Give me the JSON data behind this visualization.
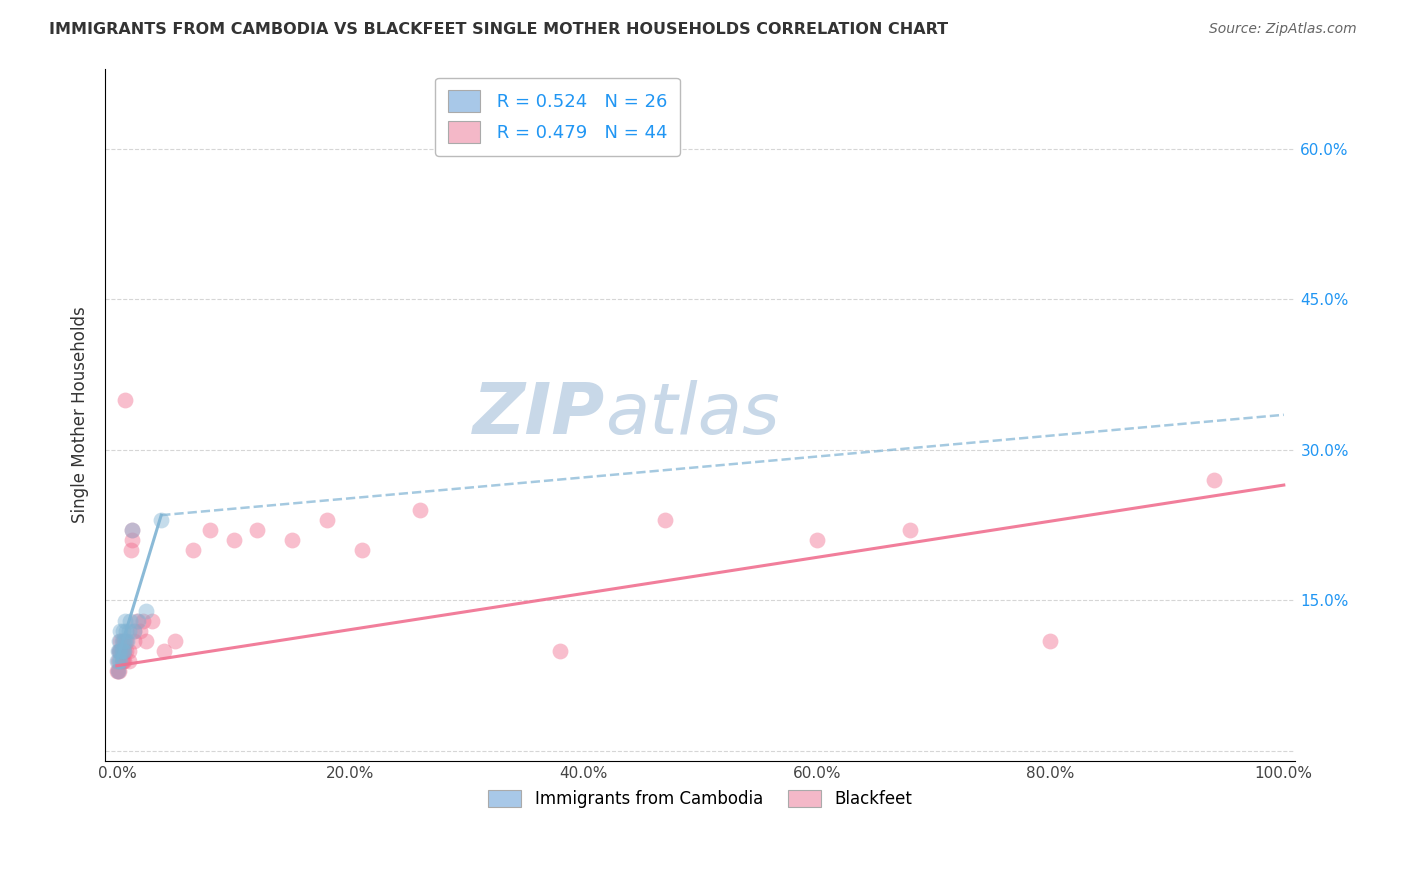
{
  "title": "IMMIGRANTS FROM CAMBODIA VS BLACKFEET SINGLE MOTHER HOUSEHOLDS CORRELATION CHART",
  "source": "Source: ZipAtlas.com",
  "ylabel": "Single Mother Households",
  "xlim": [
    -0.01,
    1.01
  ],
  "ylim": [
    -0.01,
    0.68
  ],
  "xticks": [
    0.0,
    0.2,
    0.4,
    0.6,
    0.8,
    1.0
  ],
  "xtick_labels": [
    "0.0%",
    "20.0%",
    "40.0%",
    "60.0%",
    "80.0%",
    "100.0%"
  ],
  "yticks": [
    0.0,
    0.15,
    0.3,
    0.45,
    0.6
  ],
  "ytick_labels_right": [
    "",
    "15.0%",
    "30.0%",
    "45.0%",
    "60.0%"
  ],
  "series_cambodia": {
    "label": "Immigrants from Cambodia",
    "color_patch": "#a8c8e8",
    "color_marker": "#7fb3d3",
    "R": 0.524,
    "N": 26,
    "x": [
      0.0005,
      0.001,
      0.001,
      0.0015,
      0.002,
      0.002,
      0.003,
      0.003,
      0.003,
      0.004,
      0.004,
      0.005,
      0.005,
      0.006,
      0.006,
      0.007,
      0.007,
      0.008,
      0.009,
      0.01,
      0.011,
      0.013,
      0.015,
      0.018,
      0.025,
      0.038
    ],
    "y": [
      0.09,
      0.08,
      0.1,
      0.09,
      0.1,
      0.11,
      0.09,
      0.1,
      0.12,
      0.1,
      0.11,
      0.1,
      0.12,
      0.11,
      0.1,
      0.13,
      0.11,
      0.12,
      0.11,
      0.12,
      0.13,
      0.22,
      0.12,
      0.13,
      0.14,
      0.23
    ],
    "trend_x0": 0.0,
    "trend_y0": 0.09,
    "trend_x1": 0.038,
    "trend_y1": 0.235,
    "trend_ext_x1": 1.0,
    "trend_ext_y1": 0.335
  },
  "series_blackfeet": {
    "label": "Blackfeet",
    "color_patch": "#f4b8c8",
    "color_marker": "#f07090",
    "R": 0.479,
    "N": 44,
    "x": [
      0.0005,
      0.001,
      0.001,
      0.0015,
      0.002,
      0.003,
      0.003,
      0.004,
      0.004,
      0.005,
      0.005,
      0.006,
      0.006,
      0.007,
      0.008,
      0.008,
      0.01,
      0.01,
      0.012,
      0.013,
      0.013,
      0.015,
      0.015,
      0.017,
      0.02,
      0.022,
      0.025,
      0.03,
      0.04,
      0.05,
      0.065,
      0.08,
      0.1,
      0.12,
      0.15,
      0.18,
      0.21,
      0.26,
      0.38,
      0.47,
      0.6,
      0.68,
      0.8,
      0.94
    ],
    "y": [
      0.08,
      0.09,
      0.08,
      0.1,
      0.08,
      0.1,
      0.11,
      0.09,
      0.1,
      0.09,
      0.11,
      0.1,
      0.09,
      0.35,
      0.11,
      0.1,
      0.1,
      0.09,
      0.2,
      0.22,
      0.21,
      0.12,
      0.11,
      0.13,
      0.12,
      0.13,
      0.11,
      0.13,
      0.1,
      0.11,
      0.2,
      0.22,
      0.21,
      0.22,
      0.21,
      0.23,
      0.2,
      0.24,
      0.1,
      0.23,
      0.21,
      0.22,
      0.11,
      0.27
    ],
    "trend_x0": 0.0,
    "trend_y0": 0.085,
    "trend_x1": 1.0,
    "trend_y1": 0.265
  },
  "legend_text_color": "#2196F3",
  "background_color": "#ffffff",
  "grid_color": "#cccccc",
  "watermark_ZIP": "ZIP",
  "watermark_atlas": "atlas",
  "watermark_color": "#c8d8e8"
}
